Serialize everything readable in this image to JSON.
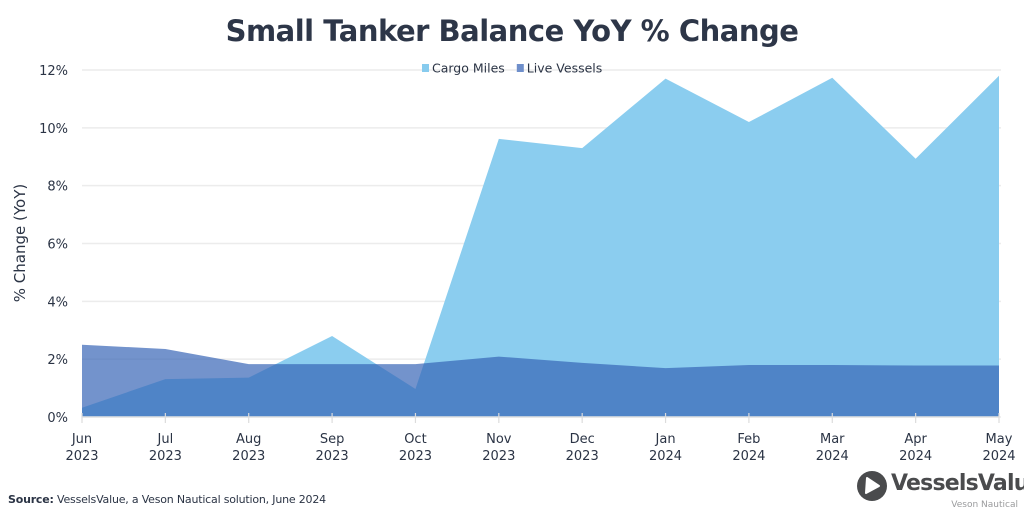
{
  "chart_data": {
    "type": "area",
    "title": "Small Tanker Balance YoY % Change",
    "xlabel": "",
    "ylabel": "% Change (YoY)",
    "categories": [
      [
        "Jun",
        "2023"
      ],
      [
        "Jul",
        "2023"
      ],
      [
        "Aug",
        "2023"
      ],
      [
        "Sep",
        "2023"
      ],
      [
        "Oct",
        "2023"
      ],
      [
        "Nov",
        "2023"
      ],
      [
        "Dec",
        "2023"
      ],
      [
        "Jan",
        "2024"
      ],
      [
        "Feb",
        "2024"
      ],
      [
        "Mar",
        "2024"
      ],
      [
        "Apr",
        "2024"
      ],
      [
        "May",
        "2024"
      ]
    ],
    "series": [
      {
        "name": "Cargo Miles",
        "color": "#87cbee",
        "values": [
          0.32,
          1.31,
          1.36,
          2.8,
          0.97,
          9.62,
          9.3,
          11.7,
          10.2,
          11.73,
          8.93,
          11.8
        ]
      },
      {
        "name": "Live Vessels",
        "color": "#3462b5",
        "values": [
          2.5,
          2.35,
          1.83,
          1.83,
          1.83,
          2.09,
          1.87,
          1.69,
          1.8,
          1.8,
          1.78,
          1.78
        ]
      }
    ],
    "ylim": [
      0,
      12
    ],
    "yticks": [
      0,
      2,
      4,
      6,
      8,
      10,
      12
    ],
    "ytick_labels": [
      "0%",
      "2%",
      "4%",
      "6%",
      "8%",
      "10%",
      "12%"
    ],
    "grid": true,
    "legend_position": "top-center"
  },
  "footer": {
    "source_label": "Source:",
    "source_text": " VesselsValue, a Veson Nautical solution, June 2024"
  },
  "logo": {
    "brand": "VesselsValue",
    "sub": "Veson Nautical"
  }
}
